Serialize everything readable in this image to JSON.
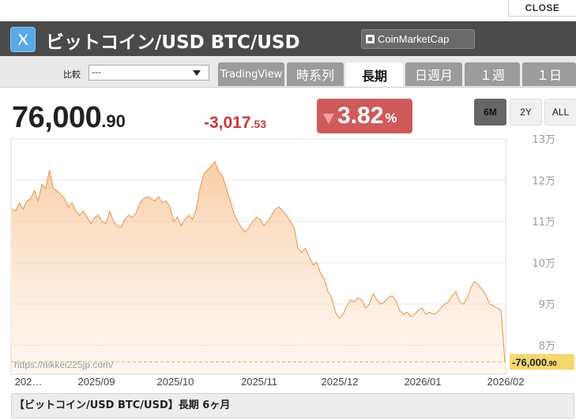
{
  "close_label": "CLOSE",
  "header": {
    "title": "ビットコイン/USD BTC/USD",
    "source_button": "CoinMarketCap",
    "logo_icon": "x-logo-icon"
  },
  "compare": {
    "label": "比較",
    "selected": "---"
  },
  "tabs": [
    {
      "label": "TradingView",
      "active": false
    },
    {
      "label": "時系列",
      "active": false
    },
    {
      "label": "長期",
      "active": true
    },
    {
      "label": "日週月",
      "active": false
    },
    {
      "label": "１週",
      "active": false
    },
    {
      "label": "１日",
      "active": false
    }
  ],
  "quote": {
    "price_int": "76,000",
    "price_dec": ".90",
    "change_int": "-3,017",
    "change_dec": ".53",
    "change_pct": "3.82",
    "pct_sign": "%"
  },
  "range_buttons": [
    {
      "label": "6M",
      "active": true
    },
    {
      "label": "2Y",
      "active": false
    },
    {
      "label": "ALL",
      "active": false
    }
  ],
  "watermark": "https://nikkei225jp.com/",
  "bottom_caption": "【ビットコイン/USD BTC/USD】長期 6ヶ月",
  "colors": {
    "line": "#e8a15e",
    "fill_top": "#f9cba1",
    "down_red": "#c73a3a",
    "header_bg": "#4a4a4a",
    "last_price_bg": "#f5d76e"
  },
  "chart_data": {
    "type": "area",
    "x_ticks": [
      "202…",
      "2025/09",
      "2025/10",
      "2025/11",
      "2025/12",
      "2026/01",
      "2026/02"
    ],
    "y_ticks": [
      "13万",
      "12万",
      "11万",
      "10万",
      "9万",
      "8万"
    ],
    "y_tick_values": [
      130000,
      120000,
      110000,
      100000,
      90000,
      80000
    ],
    "ylim": [
      73000,
      130000
    ],
    "last_price_label": "76,000",
    "last_price_label_dec": ".90",
    "last_price": 76000.9,
    "grid": true,
    "values": [
      113000,
      112500,
      114500,
      113000,
      115000,
      115500,
      117500,
      115000,
      119000,
      118000,
      122500,
      118000,
      117500,
      116500,
      115500,
      113500,
      114500,
      112500,
      111500,
      112500,
      111000,
      109500,
      111000,
      111500,
      110000,
      109500,
      112500,
      110000,
      109000,
      108500,
      110500,
      111500,
      111000,
      112000,
      114500,
      115500,
      116000,
      115500,
      115000,
      116000,
      114500,
      115000,
      113500,
      110000,
      111000,
      109000,
      110500,
      111500,
      110500,
      113000,
      118000,
      121500,
      122500,
      123500,
      124500,
      122000,
      121000,
      118000,
      115000,
      112000,
      110000,
      108500,
      107500,
      108500,
      110000,
      111000,
      110500,
      109000,
      110000,
      111500,
      113000,
      113500,
      112500,
      111500,
      110000,
      108500,
      103500,
      102500,
      103500,
      101500,
      99500,
      100000,
      97500,
      96000,
      93000,
      91500,
      88000,
      86500,
      87500,
      89500,
      91000,
      90500,
      91500,
      91000,
      89000,
      90000,
      92500,
      91000,
      90000,
      90500,
      91500,
      92000,
      91000,
      88500,
      87500,
      88000,
      87000,
      87500,
      88500,
      89000,
      87500,
      88000,
      87500,
      88000,
      89000,
      90000,
      90500,
      92000,
      93000,
      90500,
      90000,
      91500,
      94000,
      95500,
      94500,
      93500,
      92000,
      90000,
      89500,
      89000,
      88500,
      76000.9
    ]
  }
}
